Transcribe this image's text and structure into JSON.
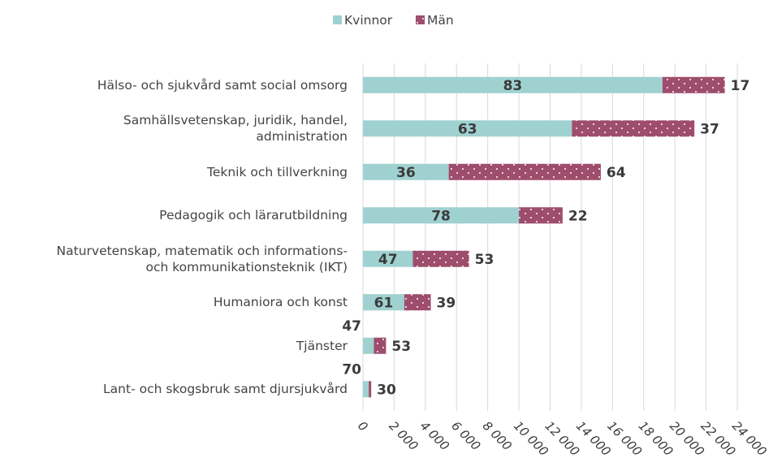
{
  "chart_data": {
    "type": "bar",
    "orientation": "horizontal",
    "stacked": true,
    "categories": [
      "Hälso- och sjukvård samt social omsorg",
      "Samhällsvetenskap, juridik, handel,\nadministration",
      "Teknik och tillverkning",
      "Pedagogik och lärarutbildning",
      "Naturvetenskap, matematik och informations-\noch kommunikationsteknik (IKT)",
      "Humaniora och konst",
      "Tjänster",
      "Lant- och skogsbruk samt djursjukvård"
    ],
    "series": [
      {
        "name": "Kvinnor",
        "color": "#9fd1d0",
        "values": [
          19200,
          13400,
          5500,
          10000,
          3200,
          2650,
          700,
          370
        ],
        "shares": [
          83,
          63,
          36,
          78,
          47,
          61,
          47,
          70
        ]
      },
      {
        "name": "Män",
        "color": "#9e4d6c",
        "pattern": "dots",
        "values": [
          4000,
          7850,
          9750,
          2800,
          3600,
          1700,
          780,
          160
        ],
        "shares": [
          17,
          37,
          64,
          22,
          53,
          39,
          53,
          30
        ]
      }
    ],
    "xlim": [
      0,
      24000
    ],
    "xticks": [
      0,
      {
        "value": 2000,
        "label": "2 000"
      },
      {
        "value": 4000,
        "label": "4 000"
      },
      {
        "value": 6000,
        "label": "6 000"
      },
      {
        "value": 8000,
        "label": "8 000"
      },
      {
        "value": 10000,
        "label": "10 000"
      },
      {
        "value": 12000,
        "label": "12 000"
      },
      {
        "value": 14000,
        "label": "14 000"
      },
      {
        "value": 16000,
        "label": "16 000"
      },
      {
        "value": 18000,
        "label": "18 000"
      },
      {
        "value": 20000,
        "label": "20 000"
      },
      {
        "value": 22000,
        "label": "22 000"
      },
      {
        "value": 24000,
        "label": "24 000"
      }
    ],
    "grid": true,
    "legend": "top"
  }
}
